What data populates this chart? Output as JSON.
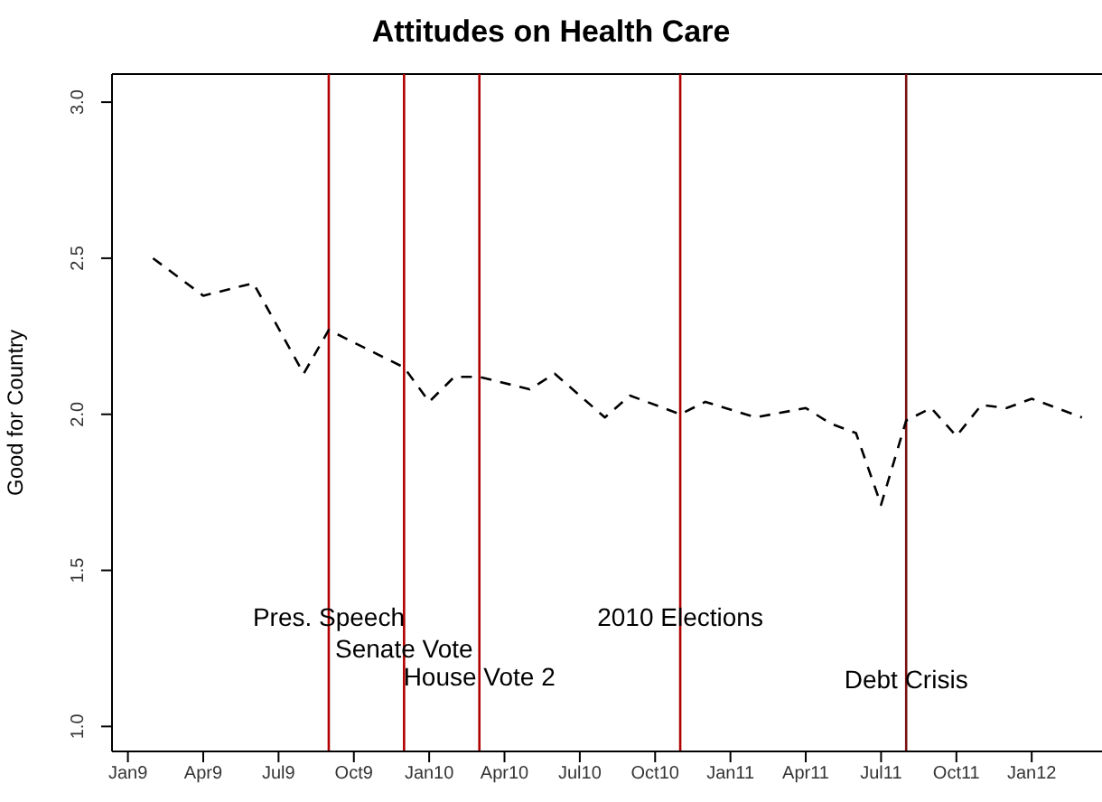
{
  "chart_data": {
    "type": "line",
    "title": "Attitudes on Health Care",
    "ylabel": "Good for Country",
    "x": [
      "2009-02",
      "2009-04",
      "2009-06",
      "2009-08",
      "2009-09",
      "2009-12",
      "2010-01",
      "2010-02",
      "2010-03",
      "2010-05",
      "2010-06",
      "2010-08",
      "2010-09",
      "2010-11",
      "2010-12",
      "2011-02",
      "2011-04",
      "2011-05",
      "2011-06",
      "2011-07",
      "2011-08",
      "2011-09",
      "2011-10",
      "2011-11",
      "2011-12",
      "2012-01",
      "2012-03"
    ],
    "series": [
      {
        "color": "#000000",
        "values": [
          2.5,
          2.38,
          2.42,
          2.13,
          2.27,
          2.15,
          2.04,
          2.12,
          2.12,
          2.08,
          2.13,
          1.99,
          2.06,
          2.0,
          2.04,
          1.99,
          2.02,
          1.97,
          1.94,
          1.71,
          1.98,
          2.02,
          1.93,
          2.03,
          2.02,
          2.05,
          1.99
        ]
      }
    ],
    "xlim": [
      "2008-12-12",
      "2012-03-25"
    ],
    "xticks": [
      {
        "value": "2009-01",
        "label": "Jan9"
      },
      {
        "value": "2009-04",
        "label": "Apr9"
      },
      {
        "value": "2009-07",
        "label": "Jul9"
      },
      {
        "value": "2009-10",
        "label": "Oct9"
      },
      {
        "value": "2010-01",
        "label": "Jan10"
      },
      {
        "value": "2010-04",
        "label": "Apr10"
      },
      {
        "value": "2010-07",
        "label": "Jul10"
      },
      {
        "value": "2010-10",
        "label": "Oct10"
      },
      {
        "value": "2011-01",
        "label": "Jan11"
      },
      {
        "value": "2011-04",
        "label": "Apr11"
      },
      {
        "value": "2011-07",
        "label": "Jul11"
      },
      {
        "value": "2011-10",
        "label": "Oct11"
      },
      {
        "value": "2012-01",
        "label": "Jan12"
      }
    ],
    "ylim": [
      0.92,
      3.09
    ],
    "yticks": [
      {
        "value": 1,
        "label": "1.0"
      },
      {
        "value": 1.5,
        "label": "1.5"
      },
      {
        "value": 2,
        "label": "2.0"
      },
      {
        "value": 2.5,
        "label": "2.5"
      },
      {
        "value": 3,
        "label": "3.0"
      }
    ],
    "ref_lines": [
      {
        "axis": "x",
        "value": "2009-09",
        "color": "#b00000"
      },
      {
        "axis": "x",
        "value": "2009-12",
        "color": "#b00000"
      },
      {
        "axis": "x",
        "value": "2010-03",
        "color": "#b00000"
      },
      {
        "axis": "x",
        "value": "2010-11",
        "color": "#b00000"
      },
      {
        "axis": "x",
        "value": "2011-08",
        "color": "#7a1010"
      }
    ],
    "annotations": [
      {
        "text": "Pres. Speech",
        "x": "2009-09",
        "y": 1.35
      },
      {
        "text": "Senate Vote",
        "x": "2009-12",
        "y": 1.25
      },
      {
        "text": "House Vote 2",
        "x": "2010-03",
        "y": 1.16
      },
      {
        "text": "2010 Elections",
        "x": "2010-11",
        "y": 1.35
      },
      {
        "text": "Debt Crisis",
        "x": "2011-08",
        "y": 1.15
      }
    ],
    "grid": false,
    "legend": false,
    "marker": "none",
    "line_style": "dashed"
  }
}
